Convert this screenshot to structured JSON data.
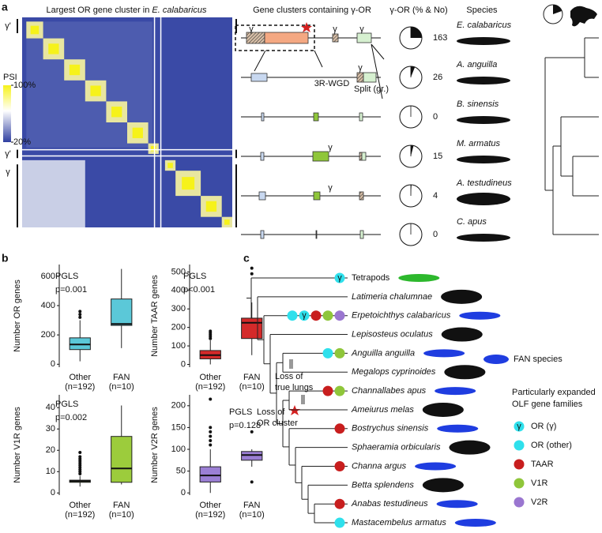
{
  "panel_labels": [
    "a",
    "b",
    "c"
  ],
  "panel_a": {
    "title_prefix": "Largest OR gene cluster in ",
    "title_species": "E. calabaricus",
    "color_scale": {
      "title": "PSI",
      "ticks": [
        {
          "value": 100,
          "label": "100%"
        },
        {
          "value": 20,
          "label": "20%"
        }
      ]
    },
    "side_labels": [
      "γ'",
      "γ'",
      "γ"
    ],
    "clusters_header": "Gene clusters containing γ-OR",
    "share_header": "γ-OR (% & No)",
    "species_header": "Species",
    "cluster_labels": [
      "γ",
      "γ",
      "γ",
      "γ",
      "3R-WGD",
      "Split (gr.)",
      "γ",
      "γ"
    ],
    "species": [
      {
        "name": "E. calabaricus",
        "share": 25,
        "count": 163
      },
      {
        "name": "A. anguilla",
        "share": 6,
        "count": 26
      },
      {
        "name": "B. sinensis",
        "share": 0,
        "count": 0
      },
      {
        "name": "M. armatus",
        "share": 4,
        "count": 15
      },
      {
        "name": "A. testudineus",
        "share": 1,
        "count": 4
      },
      {
        "name": "C. apus",
        "share": 0,
        "count": 0
      }
    ]
  },
  "chart_data": [
    {
      "type": "box",
      "ylabel": "Number OR genes",
      "annotations": [
        "PGLS",
        "p=0.001"
      ],
      "categories": [
        "Other",
        "FAN"
      ],
      "category_notes": [
        "(n=192)",
        "(n=10)"
      ],
      "color": "#5bc8d8",
      "ylim": [
        -20,
        680
      ],
      "yticks": [
        0,
        200,
        400,
        600
      ],
      "boxes": [
        {
          "min": 20,
          "q1": 100,
          "median": 135,
          "q3": 180,
          "max": 300,
          "outliers": [
            320,
            340,
            360
          ]
        },
        {
          "min": 110,
          "q1": 265,
          "median": 275,
          "q3": 445,
          "max": 650,
          "outliers": []
        }
      ]
    },
    {
      "type": "box",
      "ylabel": "Number TAAR genes",
      "annotations": [
        "PGLS",
        "p<0.001"
      ],
      "categories": [
        "Other",
        "FAN"
      ],
      "category_notes": [
        "(n=192)",
        "(n=10)"
      ],
      "color": "#d42a2a",
      "ylim": [
        -15,
        540
      ],
      "yticks": [
        0,
        100,
        200,
        300,
        400,
        500
      ],
      "boxes": [
        {
          "min": 0,
          "q1": 30,
          "median": 50,
          "q3": 75,
          "max": 130,
          "outliers": [
            140,
            150,
            160,
            170,
            180
          ]
        },
        {
          "min": 50,
          "q1": 140,
          "median": 225,
          "q3": 250,
          "max": 335,
          "outliers": [
            490,
            520
          ]
        }
      ]
    },
    {
      "type": "box",
      "ylabel": "Number V1R genes",
      "annotations": [
        "PGLS",
        "p=0.002"
      ],
      "categories": [
        "Other",
        "FAN"
      ],
      "category_notes": [
        "(n=192)",
        "(n=10)"
      ],
      "color": "#9ccc3c",
      "ylim": [
        -1,
        46
      ],
      "yticks": [
        0,
        10,
        20,
        30,
        40
      ],
      "boxes": [
        {
          "min": 3,
          "q1": 5,
          "median": 5.5,
          "q3": 6,
          "max": 8,
          "outliers": [
            9,
            10,
            11,
            12,
            13,
            14,
            15,
            16,
            17,
            19
          ]
        },
        {
          "min": 4,
          "q1": 5,
          "median": 11.5,
          "q3": 26.5,
          "max": 41,
          "outliers": []
        }
      ]
    },
    {
      "type": "box",
      "ylabel": "Number V2R genes",
      "annotations": [
        "PGLS",
        "p=0.128"
      ],
      "categories": [
        "Other",
        "FAN"
      ],
      "category_notes": [
        "(n=192)",
        "(n=10)"
      ],
      "color": "#9b7fd4",
      "ylim": [
        -5,
        225
      ],
      "yticks": [
        0,
        50,
        100,
        150,
        200
      ],
      "boxes": [
        {
          "min": 0,
          "q1": 25,
          "median": 40,
          "q3": 60,
          "max": 100,
          "outliers": [
            110,
            120,
            130,
            140,
            150,
            215
          ]
        },
        {
          "min": 60,
          "q1": 75,
          "median": 87,
          "q3": 95,
          "max": 100,
          "outliers": [
            25,
            140
          ]
        }
      ]
    }
  ],
  "panel_c": {
    "taxa": [
      {
        "name": "Tetrapods",
        "italic": false,
        "color": "#2db82d",
        "families": [
          "OR (γ)"
        ]
      },
      {
        "name": "Latimeria chalumnae",
        "italic": true,
        "color": "#111111",
        "families": []
      },
      {
        "name": "Erpetoichthys calabaricus",
        "italic": true,
        "color": "#1f3de0",
        "families": [
          "OR (other)",
          "OR (γ)",
          "TAAR",
          "V1R",
          "V2R"
        ]
      },
      {
        "name": "Lepisosteus oculatus",
        "italic": true,
        "color": "#111111",
        "families": []
      },
      {
        "name": "Anguilla anguilla",
        "italic": true,
        "color": "#1f3de0",
        "families": [
          "OR (other)",
          "V1R"
        ]
      },
      {
        "name": "Megalops cyprinoides",
        "italic": true,
        "color": "#111111",
        "families": []
      },
      {
        "name": "Channallabes apus",
        "italic": true,
        "color": "#1f3de0",
        "families": [
          "TAAR",
          "V1R"
        ]
      },
      {
        "name": "Ameiurus melas",
        "italic": true,
        "color": "#111111",
        "families": []
      },
      {
        "name": "Bostrychus sinensis",
        "italic": true,
        "color": "#1f3de0",
        "families": [
          "TAAR"
        ]
      },
      {
        "name": "Sphaeramia orbicularis",
        "italic": true,
        "color": "#111111",
        "families": []
      },
      {
        "name": "Channa argus",
        "italic": true,
        "color": "#1f3de0",
        "families": [
          "TAAR"
        ]
      },
      {
        "name": "Betta splendens",
        "italic": true,
        "color": "#111111",
        "families": []
      },
      {
        "name": "Anabas testudineus",
        "italic": true,
        "color": "#1f3de0",
        "families": [
          "TAAR"
        ]
      },
      {
        "name": "Mastacembelus armatus",
        "italic": true,
        "color": "#1f3de0",
        "families": [
          "OR (other)"
        ]
      }
    ],
    "events": [
      [
        "Loss of",
        "true lungs"
      ],
      [
        "Loss of",
        "OR cluster"
      ]
    ],
    "fan_label": "FAN species",
    "fan_color": "#1f3de0",
    "legend_title": [
      "Particularly expanded",
      "OLF gene families"
    ],
    "families": [
      {
        "name": "OR (γ)",
        "color": "#2fe0ec",
        "symbol": "γ"
      },
      {
        "name": "OR (other)",
        "color": "#2fe0ec"
      },
      {
        "name": "TAAR",
        "color": "#c81e1e"
      },
      {
        "name": "V1R",
        "color": "#8fc63a"
      },
      {
        "name": "V2R",
        "color": "#9a76d0"
      }
    ]
  }
}
